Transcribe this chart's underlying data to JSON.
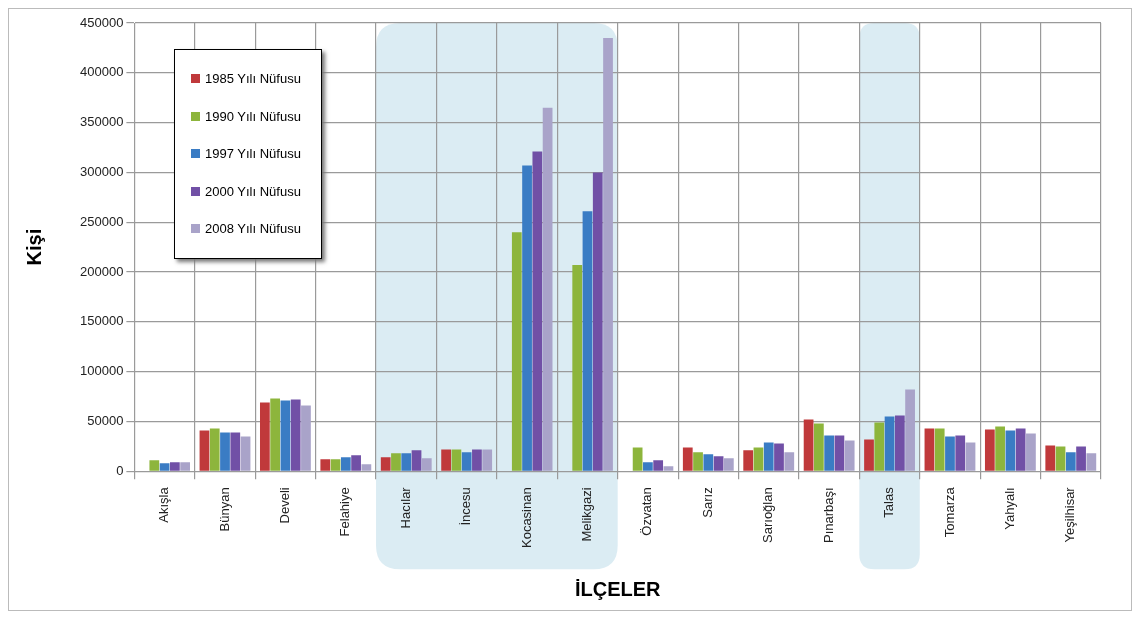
{
  "chart_data": {
    "type": "bar",
    "xlabel": "İLÇELER",
    "ylabel": "Kişi",
    "categories": [
      "Akışla",
      "Bünyan",
      "Develi",
      "Felahiye",
      "Hacılar",
      "İncesu",
      "Kocasinan",
      "Melikgazi",
      "Özvatan",
      "Sarız",
      "Sarıoğlan",
      "Pınarbaşı",
      "Talas",
      "Tomarza",
      "Yahyalı",
      "Yeşilhisar"
    ],
    "series": [
      {
        "name": "1985 Yılı Nüfusu",
        "color": "#c0393b",
        "values": [
          null,
          41000,
          69000,
          12000,
          14000,
          22000,
          null,
          null,
          null,
          24000,
          21000,
          52000,
          32000,
          43000,
          42000,
          26000
        ]
      },
      {
        "name": "1990 Yılı Nüfusu",
        "color": "#8db53c",
        "values": [
          11000,
          43000,
          73000,
          12000,
          18000,
          22000,
          240000,
          207000,
          24000,
          19000,
          24000,
          48000,
          49000,
          43000,
          45000,
          25000
        ]
      },
      {
        "name": "1997 Yılı Nüfusu",
        "color": "#3a7cc4",
        "values": [
          8000,
          39000,
          71000,
          14000,
          18000,
          19000,
          307000,
          261000,
          9000,
          17000,
          29000,
          36000,
          55000,
          35000,
          41000,
          19000
        ]
      },
      {
        "name": "2000 Yılı Nüfusu",
        "color": "#7150a6",
        "values": [
          9000,
          39000,
          72000,
          16000,
          21000,
          22000,
          321000,
          300000,
          11000,
          15000,
          28000,
          36000,
          56000,
          36000,
          43000,
          25000
        ]
      },
      {
        "name": "2008 Yılı Nüfusu",
        "color": "#a9a3c9",
        "values": [
          9000,
          35000,
          66000,
          7000,
          13000,
          22000,
          365000,
          435000,
          5000,
          13000,
          19000,
          31000,
          82000,
          29000,
          38000,
          18000
        ]
      }
    ],
    "ylim": [
      0,
      450000
    ],
    "yticks": [
      0,
      50000,
      100000,
      150000,
      200000,
      250000,
      300000,
      350000,
      400000,
      450000
    ],
    "grid": true,
    "legend": "top left",
    "bands": [
      {
        "axis": "x",
        "from": "Hacılar",
        "to": "Melikgazi",
        "color": "#dbecf3"
      },
      {
        "axis": "x",
        "from": "Talas",
        "to": "Talas",
        "color": "#dbecf3"
      }
    ]
  }
}
